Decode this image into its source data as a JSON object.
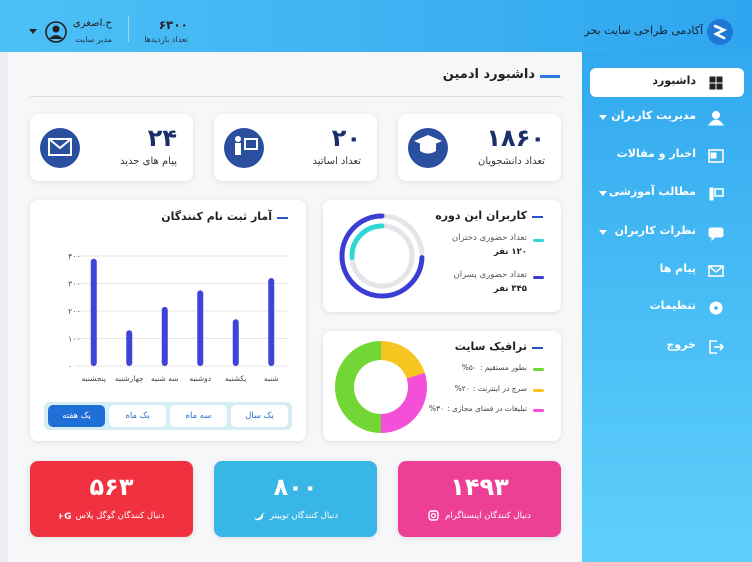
{
  "header": {
    "brand": "آکادمی طراحی سایت بحر",
    "visits": "۶۳۰۰",
    "visits_label": "تعداد بازدیدها",
    "user_name": "ح.اصغری",
    "user_role": "مدیر سایت"
  },
  "sidebar": {
    "active_item": 0,
    "items": [
      {
        "label": "داشبورد",
        "submenu": false
      },
      {
        "label": "مدیریت کاربران",
        "submenu": true
      },
      {
        "label": "اخبار و مقالات",
        "submenu": false
      },
      {
        "label": "مطالب آموزشی",
        "submenu": true
      },
      {
        "label": "نظرات کاربران",
        "submenu": true
      },
      {
        "label": "پیام ها",
        "submenu": false
      },
      {
        "label": "تنظیمات",
        "submenu": false
      },
      {
        "label": "خروج",
        "submenu": false
      }
    ]
  },
  "page_title": "داشبورد ادمین",
  "stats": [
    {
      "value": "۱۸۶۰",
      "label": "تعداد دانشجویان"
    },
    {
      "value": "۲۰",
      "label": "تعداد اساتید"
    },
    {
      "value": "۲۴",
      "label": "پیام های جدید"
    }
  ],
  "chart_data": [
    {
      "type": "bar",
      "title": "آمار ثبت نام کنندگان",
      "categories": [
        "شنبه",
        "یکشنبه",
        "دوشنبه",
        "سه شنبه",
        "چهارشنبه",
        "پنجشنبه"
      ],
      "values": [
        320,
        170,
        275,
        215,
        130,
        390
      ],
      "color": "#3f44d6",
      "ylim": [
        0,
        400
      ],
      "yticks": [
        {
          "value": 0,
          "label": "۰"
        },
        {
          "value": 100,
          "label": "۱۰۰"
        },
        {
          "value": 200,
          "label": "۲۰۰"
        },
        {
          "value": 300,
          "label": "۳۰۰"
        },
        {
          "value": 400,
          "label": "۴۰۰"
        }
      ],
      "grid": true,
      "range_buttons": [
        "یک سال",
        "سه ماه",
        "یک ماه",
        "یک هفته"
      ],
      "active_button": 3
    },
    {
      "type": "donut",
      "title": "کاربران این دوره",
      "series": [
        {
          "name": "تعداد حضوری دختران",
          "color": "#2fd8d4",
          "values": [
            120
          ],
          "value_labels": [
            "۱۲۰ نفر"
          ]
        },
        {
          "name": "تعداد حضوری پسران",
          "color": "#3a3ed4",
          "values": [
            345
          ],
          "value_labels": [
            "۳۴۵ نفر"
          ]
        }
      ]
    },
    {
      "type": "pie",
      "title": "ترافیک سایت",
      "categories": [
        "بطور مستقیم :",
        "سرچ در اینترنت :",
        "تبلیغات در فضای مجازی :"
      ],
      "values": [
        50,
        20,
        30
      ],
      "value_labels": [
        "۵۰%",
        "۲۰%",
        "۳۰%"
      ],
      "colors": [
        "#72d634",
        "#f7c520",
        "#f44fd8"
      ]
    }
  ],
  "social": [
    {
      "value": "۵۶۳",
      "label": "دنبال کنندگان گوگل پلاس",
      "color": "#f0313f"
    },
    {
      "value": "۸۰۰",
      "label": "دنبال کنندگان توییتر",
      "color": "#38b6e6"
    },
    {
      "value": "۱۴۹۳",
      "label": "دنبال کنندگان اینستاگرام",
      "color": "#ee3f97"
    }
  ]
}
